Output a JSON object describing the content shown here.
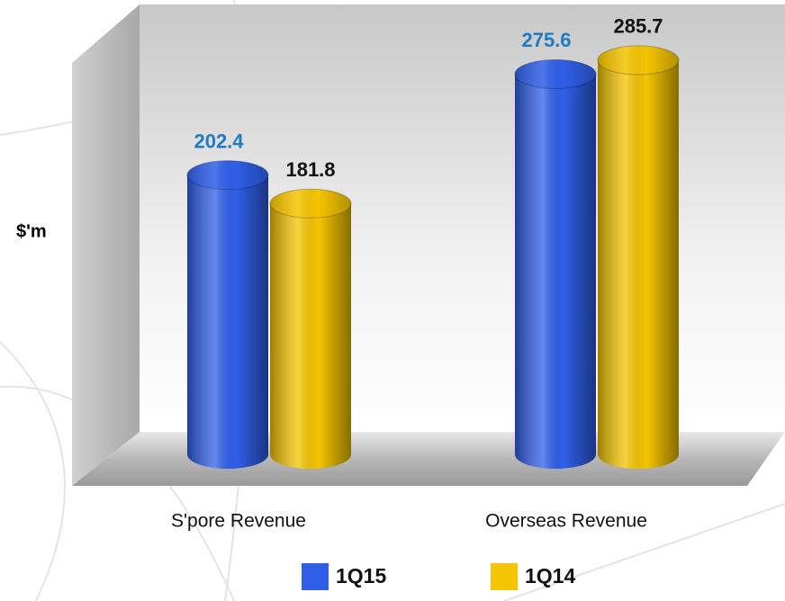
{
  "chart_data": {
    "type": "bar3d",
    "ylabel": "$'m",
    "categories": [
      "S'pore Revenue",
      "Overseas Revenue"
    ],
    "series": [
      {
        "name": "1Q15",
        "color": "#2f5fe8",
        "label_color": "#1f7bc4",
        "values": [
          202.4,
          275.6
        ]
      },
      {
        "name": "1Q14",
        "color": "#f5c400",
        "label_color": "#111111",
        "values": [
          181.8,
          285.7
        ]
      }
    ],
    "ylim": [
      0,
      300
    ],
    "legend": "bottom"
  }
}
